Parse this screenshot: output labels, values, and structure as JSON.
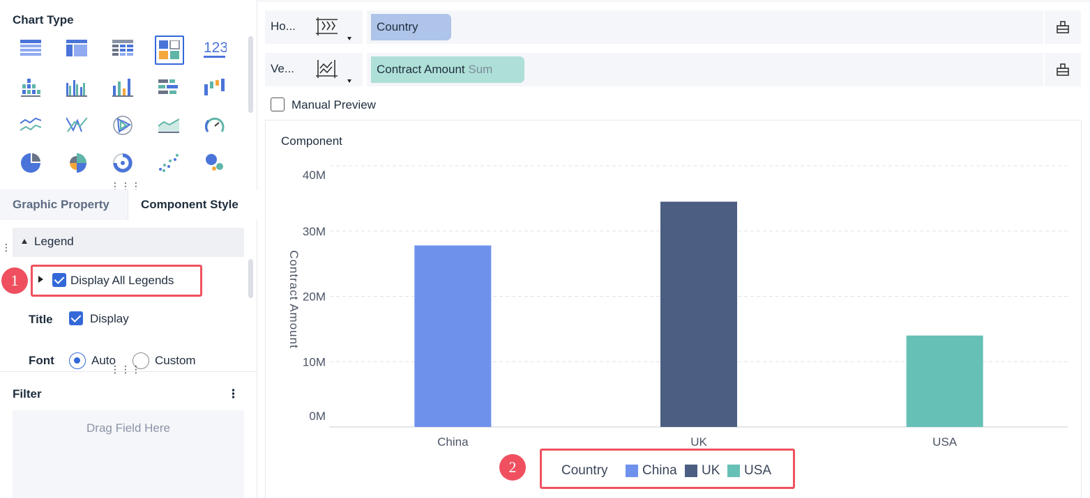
{
  "left": {
    "chart_type_title": "Chart Type",
    "chart_types": [
      {
        "name": "table-icon"
      },
      {
        "name": "group-table-icon"
      },
      {
        "name": "cross-table-icon"
      },
      {
        "name": "custom-chart-icon",
        "selected": true
      },
      {
        "name": "kpi-icon",
        "text": "123"
      },
      {
        "name": "grouped-bar-icon"
      },
      {
        "name": "stacked-bar-icon"
      },
      {
        "name": "bar-chart-icon"
      },
      {
        "name": "horizontal-bar-icon"
      },
      {
        "name": "waterfall-icon"
      },
      {
        "name": "line-chart-icon"
      },
      {
        "name": "parallel-line-icon"
      },
      {
        "name": "radar-icon"
      },
      {
        "name": "area-chart-icon"
      },
      {
        "name": "gauge-icon"
      },
      {
        "name": "pie-icon"
      },
      {
        "name": "rose-pie-icon"
      },
      {
        "name": "donut-icon"
      },
      {
        "name": "scatter-icon"
      },
      {
        "name": "bubble-icon"
      }
    ],
    "tabs": {
      "graphic_property": "Graphic Property",
      "component_style": "Component Style"
    },
    "legend_section": "Legend",
    "display_all_legends": "Display All Legends",
    "title_label": "Title",
    "title_display": "Display",
    "font_label": "Font",
    "font_auto": "Auto",
    "font_custom": "Custom",
    "filter_title": "Filter",
    "filter_more": "⋮",
    "drag_field": "Drag Field Here",
    "badge1": "1"
  },
  "shelves": {
    "horizontal": {
      "label": "Ho...",
      "field": "Country"
    },
    "vertical": {
      "label": "Ve...",
      "field": "Contract Amount",
      "agg": "Sum"
    }
  },
  "manual_preview": "Manual Preview",
  "colors": {
    "china": "#6e92ec",
    "uk": "#4c5e82",
    "usa": "#67c0b6",
    "highlight": "#f0515e",
    "accent": "#3368d9"
  },
  "chart_data": {
    "type": "bar",
    "title": "Component",
    "categories": [
      "China",
      "UK",
      "USA"
    ],
    "values": [
      27800000,
      34500000,
      14000000
    ],
    "ylabel": "Contract Amount",
    "xlabel": "",
    "ylim": [
      0,
      40000000
    ],
    "y_ticks": [
      "0M",
      "10M",
      "20M",
      "30M",
      "40M"
    ],
    "legend": {
      "title": "Country",
      "items": [
        "China",
        "UK",
        "USA"
      ],
      "position": "bottom"
    },
    "grid": true
  },
  "badge2": "2"
}
